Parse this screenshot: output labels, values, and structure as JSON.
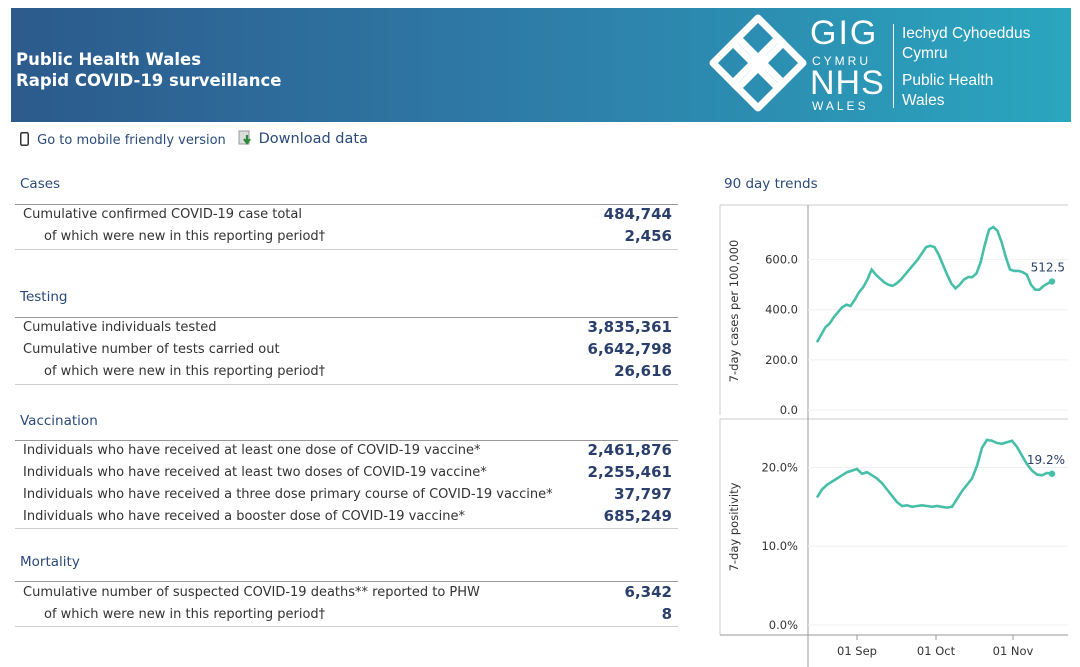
{
  "header": {
    "title_line1": "Public Health Wales",
    "title_line2": "Rapid COVID-19 surveillance",
    "logo_gig": "GIG",
    "logo_cymru": "CYMRU",
    "logo_nhs": "NHS",
    "logo_wales": "WALES",
    "org_line1": "Iechyd Cyhoeddus",
    "org_line2": "Cymru",
    "org_line3": "Public Health",
    "org_line4": "Wales"
  },
  "links": {
    "mobile": "Go to mobile friendly version",
    "download": "Download data"
  },
  "sections": {
    "cases": {
      "title": "Cases",
      "rows": [
        {
          "label": "Cumulative confirmed COVID-19 case total",
          "value": "484,744"
        },
        {
          "label": "of which were new in this reporting period†",
          "value": "2,456"
        }
      ]
    },
    "testing": {
      "title": "Testing",
      "rows": [
        {
          "label": "Cumulative individuals tested",
          "value": "3,835,361"
        },
        {
          "label": "Cumulative number of tests carried out",
          "value": "6,642,798"
        },
        {
          "label": "of which were new in this reporting period†",
          "value": "26,616"
        }
      ]
    },
    "vaccination": {
      "title": "Vaccination",
      "rows": [
        {
          "label": "Individuals who have received at least one dose of COVID-19 vaccine*",
          "value": "2,461,876"
        },
        {
          "label": "Individuals who have received at least two doses of COVID-19 vaccine*",
          "value": "2,255,461"
        },
        {
          "label": "Individuals who have received a three dose primary course of COVID-19 vaccine*",
          "value": "37,797"
        },
        {
          "label": "Individuals who have received a booster dose of COVID-19 vaccine*",
          "value": "685,249"
        }
      ]
    },
    "mortality": {
      "title": "Mortality",
      "rows": [
        {
          "label": "Cumulative number of suspected COVID-19 deaths** reported to PHW",
          "value": "6,342"
        },
        {
          "label": "of which were new in this reporting period†",
          "value": "8"
        }
      ]
    }
  },
  "colors": {
    "line": "#47bfa8",
    "header_start": "#2c5a8c",
    "header_end": "#2aa6bf",
    "value_text": "#2a3f6b"
  },
  "chart_data": [
    {
      "type": "line",
      "title": "90 day trends",
      "ylabel": "7-day cases per 100,000",
      "ylim": [
        0,
        730
      ],
      "yticks": [
        "0.0",
        "200.0",
        "400.0",
        "600.0"
      ],
      "end_label": "512.5",
      "x_ticks": [
        "01 Sep",
        "01 Oct",
        "01 Nov"
      ],
      "series": [
        {
          "values": [
            270,
            300,
            330,
            345,
            370,
            390,
            410,
            420,
            415,
            440,
            470,
            490,
            520,
            560,
            540,
            525,
            510,
            500,
            495,
            505,
            520,
            540,
            560,
            580,
            600,
            625,
            650,
            655,
            650,
            620,
            580,
            540,
            505,
            485,
            500,
            520,
            530,
            530,
            545,
            590,
            660,
            720,
            730,
            715,
            670,
            610,
            560,
            555,
            555,
            550,
            540,
            500,
            480,
            480,
            495,
            505,
            512.5
          ]
        }
      ]
    },
    {
      "type": "line",
      "ylabel": "7-day positivity",
      "ylim": [
        0,
        24.5
      ],
      "yticks": [
        "0.0%",
        "10.0%",
        "20.0%"
      ],
      "end_label": "19.2%",
      "x_ticks": [
        "01 Sep",
        "01 Oct",
        "01 Nov"
      ],
      "series": [
        {
          "values": [
            16.2,
            17.2,
            17.8,
            18.2,
            18.6,
            19.0,
            19.4,
            19.6,
            19.8,
            19.2,
            19.4,
            19.0,
            18.6,
            18.0,
            17.2,
            16.4,
            15.6,
            15.1,
            15.2,
            15.0,
            15.1,
            15.2,
            15.1,
            15.0,
            15.1,
            15.0,
            14.9,
            15.0,
            16.0,
            17.0,
            17.8,
            18.6,
            20.2,
            22.5,
            23.5,
            23.4,
            23.1,
            23.0,
            23.2,
            23.4,
            22.6,
            21.5,
            20.4,
            19.6,
            19.1,
            19.0,
            19.3,
            19.2
          ]
        }
      ]
    }
  ]
}
